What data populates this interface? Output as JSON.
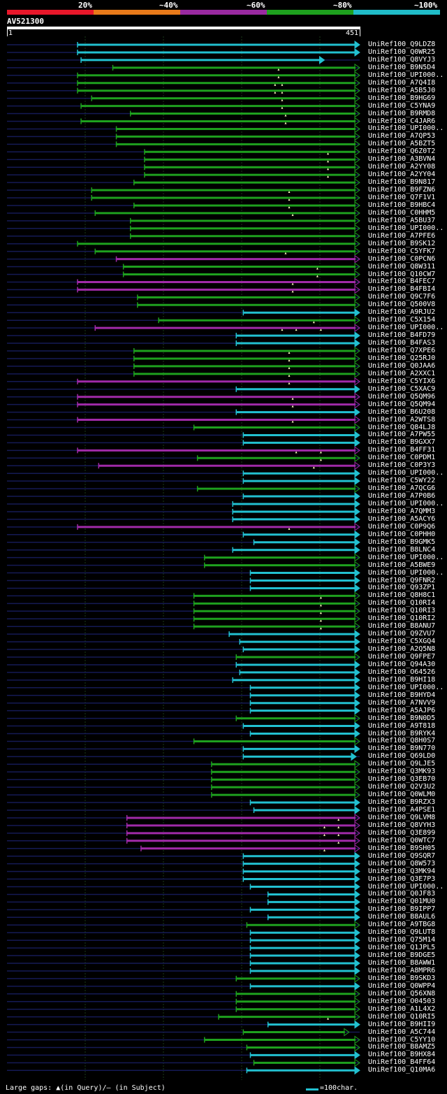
{
  "legend": {
    "segments": [
      {
        "label": "20%",
        "color": "#e8172a"
      },
      {
        "label": "~40%",
        "color": "#e87a1a"
      },
      {
        "label": "~60%",
        "color": "#9a2aa0"
      },
      {
        "label": "~80%",
        "color": "#1ea01e"
      },
      {
        "label": "~100%",
        "color": "#20bcc8"
      }
    ]
  },
  "query": {
    "id": "AV521300",
    "start": "1",
    "end": "451"
  },
  "footer": {
    "large_gaps": "Large gaps: ▲(in Query)/– (in Subject)",
    "scale_label": "=100char."
  },
  "chart_data": {
    "type": "alignment",
    "query_length": 451,
    "hits": [
      {
        "name": "UniRef100_Q9LDZ8",
        "class": "cyan",
        "start": 0.2,
        "end": 1.0
      },
      {
        "name": "UniRef100_Q0WR25",
        "class": "cyan",
        "start": 0.2,
        "end": 1.0
      },
      {
        "name": "UniRef100_Q8VYJ3",
        "class": "cyan",
        "start": 0.21,
        "end": 0.9
      },
      {
        "name": "UniRef100_B9N5D4",
        "class": "green",
        "start": 0.3,
        "end": 1.0,
        "ins": [
          0.77
        ]
      },
      {
        "name": "UniRef100_UPI000..",
        "class": "green",
        "start": 0.2,
        "end": 1.0,
        "ins": [
          0.77
        ]
      },
      {
        "name": "UniRef100_A7Q4I8",
        "class": "green",
        "start": 0.2,
        "end": 1.0,
        "ins": [
          0.76,
          0.78
        ]
      },
      {
        "name": "UniRef100_A5B5J0",
        "class": "green",
        "start": 0.2,
        "end": 1.0,
        "ins": [
          0.76,
          0.78
        ]
      },
      {
        "name": "UniRef100_B9HG69",
        "class": "green",
        "start": 0.24,
        "end": 1.0,
        "ins": [
          0.78
        ]
      },
      {
        "name": "UniRef100_C5YNA9",
        "class": "green",
        "start": 0.21,
        "end": 1.0,
        "ins": [
          0.78
        ]
      },
      {
        "name": "UniRef100_B9RMD8",
        "class": "green",
        "start": 0.35,
        "end": 1.0,
        "ins": [
          0.79
        ]
      },
      {
        "name": "UniRef100_C4JAR6",
        "class": "green",
        "start": 0.21,
        "end": 1.0,
        "ins": [
          0.79
        ]
      },
      {
        "name": "UniRef100_UPI000..",
        "class": "green",
        "start": 0.31,
        "end": 1.0
      },
      {
        "name": "UniRef100_A7QP53",
        "class": "green",
        "start": 0.31,
        "end": 1.0
      },
      {
        "name": "UniRef100_A5BZT5",
        "class": "green",
        "start": 0.31,
        "end": 1.0
      },
      {
        "name": "UniRef100_Q6Z0T2",
        "class": "green",
        "start": 0.39,
        "end": 1.0,
        "ins": [
          0.91
        ]
      },
      {
        "name": "UniRef100_A3BVN4",
        "class": "green",
        "start": 0.39,
        "end": 1.0,
        "ins": [
          0.91
        ]
      },
      {
        "name": "UniRef100_A2YY08",
        "class": "green",
        "start": 0.39,
        "end": 1.0,
        "ins": [
          0.91
        ]
      },
      {
        "name": "UniRef100_A2YY04",
        "class": "green",
        "start": 0.39,
        "end": 1.0,
        "ins": [
          0.91
        ]
      },
      {
        "name": "UniRef100_B9N817",
        "class": "green",
        "start": 0.36,
        "end": 1.0
      },
      {
        "name": "UniRef100_B9FZN6",
        "class": "green",
        "start": 0.24,
        "end": 1.0,
        "ins": [
          0.8
        ]
      },
      {
        "name": "UniRef100_Q7F1V1",
        "class": "green",
        "start": 0.24,
        "end": 1.0,
        "ins": [
          0.8
        ]
      },
      {
        "name": "UniRef100_B9HBC4",
        "class": "green",
        "start": 0.36,
        "end": 1.0,
        "ins": [
          0.8
        ]
      },
      {
        "name": "UniRef100_C0HHM5",
        "class": "green",
        "start": 0.25,
        "end": 1.0,
        "ins": [
          0.81
        ]
      },
      {
        "name": "UniRef100_A5BU37",
        "class": "green",
        "start": 0.35,
        "end": 1.0
      },
      {
        "name": "UniRef100_UPI000..",
        "class": "green",
        "start": 0.35,
        "end": 1.0
      },
      {
        "name": "UniRef100_A7PFE6",
        "class": "green",
        "start": 0.35,
        "end": 1.0
      },
      {
        "name": "UniRef100_B9SK12",
        "class": "green",
        "start": 0.2,
        "end": 1.0
      },
      {
        "name": "UniRef100_C5YFK7",
        "class": "green",
        "start": 0.25,
        "end": 1.0,
        "ins": [
          0.79
        ]
      },
      {
        "name": "UniRef100_C0PCN6",
        "class": "purple",
        "start": 0.31,
        "end": 1.0
      },
      {
        "name": "UniRef100_Q8W311",
        "class": "green",
        "start": 0.33,
        "end": 1.0,
        "ins": [
          0.88
        ]
      },
      {
        "name": "UniRef100_Q10CW7",
        "class": "green",
        "start": 0.33,
        "end": 1.0,
        "ins": [
          0.88
        ]
      },
      {
        "name": "UniRef100_B4FEC7",
        "class": "purple",
        "start": 0.2,
        "end": 1.0,
        "ins": [
          0.81
        ]
      },
      {
        "name": "UniRef100_B4FBI4",
        "class": "purple",
        "start": 0.2,
        "end": 1.0,
        "ins": [
          0.81
        ]
      },
      {
        "name": "UniRef100_Q9C7F6",
        "class": "green",
        "start": 0.37,
        "end": 1.0
      },
      {
        "name": "UniRef100_Q500V8",
        "class": "green",
        "start": 0.37,
        "end": 1.0
      },
      {
        "name": "UniRef100_A9RJU2",
        "class": "cyan",
        "start": 0.67,
        "end": 1.0
      },
      {
        "name": "UniRef100_C5X154",
        "class": "green",
        "start": 0.43,
        "end": 1.0,
        "ins": [
          0.87
        ]
      },
      {
        "name": "UniRef100_UPI000..",
        "class": "purple",
        "start": 0.25,
        "end": 1.0,
        "ins": [
          0.78,
          0.82,
          0.89
        ]
      },
      {
        "name": "UniRef100_B4FD79",
        "class": "cyan",
        "start": 0.65,
        "end": 1.0
      },
      {
        "name": "UniRef100_B4FAS3",
        "class": "cyan",
        "start": 0.65,
        "end": 1.0
      },
      {
        "name": "UniRef100_Q7XPE6",
        "class": "green",
        "start": 0.36,
        "end": 1.0,
        "ins": [
          0.8
        ]
      },
      {
        "name": "UniRef100_Q25RJ0",
        "class": "green",
        "start": 0.36,
        "end": 1.0,
        "ins": [
          0.8
        ]
      },
      {
        "name": "UniRef100_Q0JAA6",
        "class": "green",
        "start": 0.36,
        "end": 1.0,
        "ins": [
          0.8
        ]
      },
      {
        "name": "UniRef100_A2XXC1",
        "class": "green",
        "start": 0.36,
        "end": 1.0,
        "ins": [
          0.8
        ]
      },
      {
        "name": "UniRef100_C5YIX6",
        "class": "purple",
        "start": 0.2,
        "end": 1.0,
        "ins": [
          0.8
        ]
      },
      {
        "name": "UniRef100_C5XAC9",
        "class": "cyan",
        "start": 0.65,
        "end": 1.0
      },
      {
        "name": "UniRef100_Q5QM96",
        "class": "purple",
        "start": 0.2,
        "end": 1.0,
        "ins": [
          0.81
        ]
      },
      {
        "name": "UniRef100_Q5QM94",
        "class": "purple",
        "start": 0.2,
        "end": 1.0,
        "ins": [
          0.81
        ]
      },
      {
        "name": "UniRef100_B6U208",
        "class": "cyan",
        "start": 0.65,
        "end": 1.0
      },
      {
        "name": "UniRef100_A2WTS8",
        "class": "purple",
        "start": 0.2,
        "end": 1.0,
        "ins": [
          0.81
        ]
      },
      {
        "name": "UniRef100_Q84LJ8",
        "class": "green",
        "start": 0.53,
        "end": 1.0
      },
      {
        "name": "UniRef100_A7PW55",
        "class": "cyan",
        "start": 0.67,
        "end": 1.0
      },
      {
        "name": "UniRef100_B9GXX7",
        "class": "cyan",
        "start": 0.67,
        "end": 1.0
      },
      {
        "name": "UniRef100_B4FF31",
        "class": "purple",
        "start": 0.2,
        "end": 1.0,
        "ins": [
          0.82,
          0.89
        ]
      },
      {
        "name": "UniRef100_C0PDM1",
        "class": "green",
        "start": 0.54,
        "end": 1.0,
        "ins": [
          0.89
        ]
      },
      {
        "name": "UniRef100_C0P3Y3",
        "class": "purple",
        "start": 0.26,
        "end": 1.0,
        "ins": [
          0.87
        ]
      },
      {
        "name": "UniRef100_UPI000..",
        "class": "cyan",
        "start": 0.67,
        "end": 1.0
      },
      {
        "name": "UniRef100_C5WY22",
        "class": "cyan",
        "start": 0.67,
        "end": 1.0
      },
      {
        "name": "UniRef100_A7QCG6",
        "class": "green",
        "start": 0.54,
        "end": 1.0
      },
      {
        "name": "UniRef100_A7P0B6",
        "class": "cyan",
        "start": 0.67,
        "end": 1.0
      },
      {
        "name": "UniRef100_UPI000..",
        "class": "cyan",
        "start": 0.64,
        "end": 1.0
      },
      {
        "name": "UniRef100_A7QMM3",
        "class": "cyan",
        "start": 0.64,
        "end": 1.0
      },
      {
        "name": "UniRef100_A5ACY6",
        "class": "cyan",
        "start": 0.64,
        "end": 1.0
      },
      {
        "name": "UniRef100_C0P9Q6",
        "class": "purple",
        "start": 0.2,
        "end": 1.0,
        "ins": [
          0.8
        ]
      },
      {
        "name": "UniRef100_C0PHH0",
        "class": "cyan",
        "start": 0.67,
        "end": 1.0
      },
      {
        "name": "UniRef100_B9GMK5",
        "class": "cyan",
        "start": 0.7,
        "end": 1.0
      },
      {
        "name": "UniRef100_B8LNC4",
        "class": "cyan",
        "start": 0.64,
        "end": 1.0
      },
      {
        "name": "UniRef100_UPI000..",
        "class": "green",
        "start": 0.56,
        "end": 1.0
      },
      {
        "name": "UniRef100_A5BWE9",
        "class": "green",
        "start": 0.56,
        "end": 1.0
      },
      {
        "name": "UniRef100_UPI000..",
        "class": "cyan",
        "start": 0.69,
        "end": 1.0
      },
      {
        "name": "UniRef100_Q9FNR2",
        "class": "cyan",
        "start": 0.69,
        "end": 1.0
      },
      {
        "name": "UniRef100_Q93ZP1",
        "class": "cyan",
        "start": 0.69,
        "end": 1.0
      },
      {
        "name": "UniRef100_Q8H8C1",
        "class": "green",
        "start": 0.53,
        "end": 1.0,
        "ins": [
          0.89
        ]
      },
      {
        "name": "UniRef100_Q10RI4",
        "class": "green",
        "start": 0.53,
        "end": 1.0,
        "ins": [
          0.89
        ]
      },
      {
        "name": "UniRef100_Q10RI3",
        "class": "green",
        "start": 0.53,
        "end": 1.0,
        "ins": [
          0.89
        ]
      },
      {
        "name": "UniRef100_Q10RI2",
        "class": "green",
        "start": 0.53,
        "end": 1.0,
        "ins": [
          0.89
        ]
      },
      {
        "name": "UniRef100_B8ANU7",
        "class": "green",
        "start": 0.53,
        "end": 1.0,
        "ins": [
          0.89
        ]
      },
      {
        "name": "UniRef100_Q9ZVU7",
        "class": "cyan",
        "start": 0.63,
        "end": 1.0
      },
      {
        "name": "UniRef100_C5XGQ4",
        "class": "cyan",
        "start": 0.66,
        "end": 1.0
      },
      {
        "name": "UniRef100_A2Q5N8",
        "class": "cyan",
        "start": 0.67,
        "end": 1.0
      },
      {
        "name": "UniRef100_Q9FPE7",
        "class": "green",
        "start": 0.65,
        "end": 1.0
      },
      {
        "name": "UniRef100_Q94A30",
        "class": "cyan",
        "start": 0.65,
        "end": 1.0
      },
      {
        "name": "UniRef100_O64526",
        "class": "cyan",
        "start": 0.66,
        "end": 1.0
      },
      {
        "name": "UniRef100_B9HI18",
        "class": "cyan",
        "start": 0.64,
        "end": 1.0
      },
      {
        "name": "UniRef100_UPI000..",
        "class": "cyan",
        "start": 0.69,
        "end": 1.0
      },
      {
        "name": "UniRef100_B9HYD4",
        "class": "cyan",
        "start": 0.69,
        "end": 1.0
      },
      {
        "name": "UniRef100_A7NVV9",
        "class": "cyan",
        "start": 0.69,
        "end": 1.0
      },
      {
        "name": "UniRef100_A5AJP6",
        "class": "cyan",
        "start": 0.69,
        "end": 1.0
      },
      {
        "name": "UniRef100_B9N0D5",
        "class": "green",
        "start": 0.65,
        "end": 1.0
      },
      {
        "name": "UniRef100_A9T818",
        "class": "cyan",
        "start": 0.67,
        "end": 1.0
      },
      {
        "name": "UniRef100_B9RYK4",
        "class": "cyan",
        "start": 0.69,
        "end": 1.0
      },
      {
        "name": "UniRef100_Q8H0S7",
        "class": "green",
        "start": 0.53,
        "end": 1.0
      },
      {
        "name": "UniRef100_B9N770",
        "class": "cyan",
        "start": 0.67,
        "end": 1.0
      },
      {
        "name": "UniRef100_Q69LD0",
        "class": "cyan",
        "start": 0.67,
        "end": 0.99
      },
      {
        "name": "UniRef100_Q9LJE5",
        "class": "green",
        "start": 0.58,
        "end": 1.0
      },
      {
        "name": "UniRef100_Q3MK93",
        "class": "green",
        "start": 0.58,
        "end": 1.0
      },
      {
        "name": "UniRef100_Q3EB70",
        "class": "green",
        "start": 0.58,
        "end": 1.0
      },
      {
        "name": "UniRef100_Q2V3U2",
        "class": "green",
        "start": 0.58,
        "end": 1.0
      },
      {
        "name": "UniRef100_Q0WLM0",
        "class": "green",
        "start": 0.58,
        "end": 1.0
      },
      {
        "name": "UniRef100_B9RZX3",
        "class": "cyan",
        "start": 0.69,
        "end": 1.0
      },
      {
        "name": "UniRef100_A4PSE1",
        "class": "cyan",
        "start": 0.7,
        "end": 1.0
      },
      {
        "name": "UniRef100_Q9LVM8",
        "class": "purple",
        "start": 0.34,
        "end": 1.0,
        "ins": [
          0.94
        ]
      },
      {
        "name": "UniRef100_Q8VYH3",
        "class": "purple",
        "start": 0.34,
        "end": 1.0,
        "ins": [
          0.9,
          0.94
        ]
      },
      {
        "name": "UniRef100_Q3E899",
        "class": "purple",
        "start": 0.34,
        "end": 1.0,
        "ins": [
          0.9,
          0.94
        ]
      },
      {
        "name": "UniRef100_Q0WTC7",
        "class": "purple",
        "start": 0.34,
        "end": 1.0,
        "ins": [
          0.94
        ]
      },
      {
        "name": "UniRef100_B9SH05",
        "class": "purple",
        "start": 0.38,
        "end": 1.0,
        "ins": [
          0.9
        ]
      },
      {
        "name": "UniRef100_Q9SQR7",
        "class": "cyan",
        "start": 0.67,
        "end": 1.0
      },
      {
        "name": "UniRef100_Q8W573",
        "class": "cyan",
        "start": 0.67,
        "end": 1.0
      },
      {
        "name": "UniRef100_Q3MK94",
        "class": "cyan",
        "start": 0.67,
        "end": 1.0
      },
      {
        "name": "UniRef100_Q3E7P3",
        "class": "cyan",
        "start": 0.67,
        "end": 1.0
      },
      {
        "name": "UniRef100_UPI000..",
        "class": "cyan",
        "start": 0.69,
        "end": 1.0
      },
      {
        "name": "UniRef100_Q0JF83",
        "class": "cyan",
        "start": 0.74,
        "end": 1.0
      },
      {
        "name": "UniRef100_Q01MU0",
        "class": "cyan",
        "start": 0.74,
        "end": 1.0
      },
      {
        "name": "UniRef100_B9IPP7",
        "class": "cyan",
        "start": 0.69,
        "end": 1.0
      },
      {
        "name": "UniRef100_B8AUL6",
        "class": "cyan",
        "start": 0.74,
        "end": 1.0
      },
      {
        "name": "UniRef100_A9TBG8",
        "class": "green",
        "start": 0.68,
        "end": 1.0
      },
      {
        "name": "UniRef100_Q9LUT8",
        "class": "cyan",
        "start": 0.69,
        "end": 1.0
      },
      {
        "name": "UniRef100_Q75M14",
        "class": "cyan",
        "start": 0.69,
        "end": 1.0
      },
      {
        "name": "UniRef100_Q1JPL5",
        "class": "cyan",
        "start": 0.69,
        "end": 1.0
      },
      {
        "name": "UniRef100_B9DGE5",
        "class": "cyan",
        "start": 0.69,
        "end": 1.0
      },
      {
        "name": "UniRef100_B8AWW1",
        "class": "cyan",
        "start": 0.69,
        "end": 1.0
      },
      {
        "name": "UniRef100_A8MPR6",
        "class": "cyan",
        "start": 0.69,
        "end": 1.0
      },
      {
        "name": "UniRef100_B9SKD3",
        "class": "green",
        "start": 0.65,
        "end": 1.0
      },
      {
        "name": "UniRef100_Q0WPP4",
        "class": "cyan",
        "start": 0.69,
        "end": 1.0
      },
      {
        "name": "UniRef100_Q56XN8",
        "class": "green",
        "start": 0.65,
        "end": 1.0
      },
      {
        "name": "UniRef100_O04503",
        "class": "green",
        "start": 0.65,
        "end": 1.0
      },
      {
        "name": "UniRef100_A1L4X2",
        "class": "green",
        "start": 0.65,
        "end": 1.0
      },
      {
        "name": "UniRef100_Q10RI5",
        "class": "green",
        "start": 0.6,
        "end": 1.0,
        "ins": [
          0.91
        ]
      },
      {
        "name": "UniRef100_B9HII9",
        "class": "cyan",
        "start": 0.74,
        "end": 1.0
      },
      {
        "name": "UniRef100_A5C744",
        "class": "green",
        "start": 0.67,
        "end": 0.97
      },
      {
        "name": "UniRef100_C5YY10",
        "class": "green",
        "start": 0.56,
        "end": 1.0
      },
      {
        "name": "UniRef100_B8AMZ5",
        "class": "green",
        "start": 0.68,
        "end": 1.0
      },
      {
        "name": "UniRef100_B9HX84",
        "class": "cyan",
        "start": 0.69,
        "end": 1.0
      },
      {
        "name": "UniRef100_B4FF64",
        "class": "green",
        "start": 0.7,
        "end": 1.0
      },
      {
        "name": "UniRef100_Q10MA6",
        "class": "cyan",
        "start": 0.68,
        "end": 1.0
      }
    ]
  }
}
